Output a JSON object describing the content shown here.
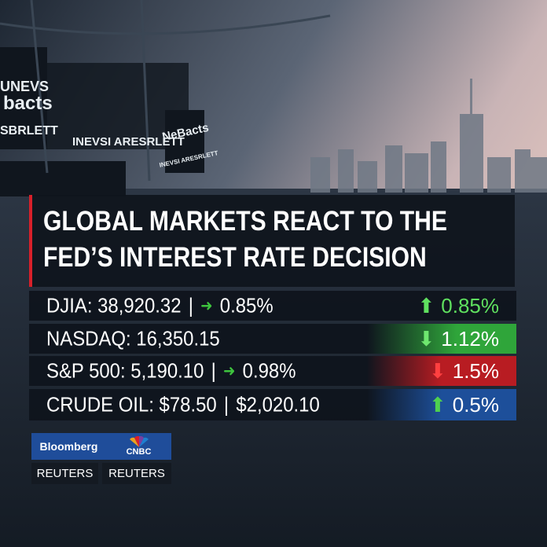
{
  "background_signs": [
    "UNEVS",
    "bacts",
    "SBRLETT",
    "INEVSI ARESRLETT",
    "NeBacts",
    "INEVSI ARESRLETT"
  ],
  "headline": {
    "lines": [
      "GLOBAL MARKETS REACT TO THE",
      "FED’S INTEREST RATE DECISION"
    ]
  },
  "ticker": {
    "rows": [
      {
        "label": "DJIA: 38,920.32",
        "detail": "0.85%",
        "change": "0.85%"
      },
      {
        "label": "NASDAQ: 16,350.15",
        "detail": null,
        "change": "1.12%"
      },
      {
        "label": "S&P 500: 5,190.10",
        "detail": "0.98%",
        "change": "1.5%"
      },
      {
        "label": "CRUDE OIL: $78.50",
        "detail": "$2,020.10",
        "change": "0.5%"
      }
    ]
  },
  "sources": {
    "top": [
      "Bloomberg",
      "CNBC"
    ],
    "bottom": [
      "REUTERS",
      "REUTERS"
    ]
  }
}
